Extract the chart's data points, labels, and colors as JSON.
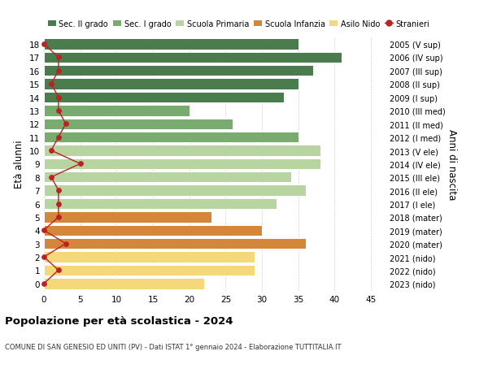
{
  "ages": [
    18,
    17,
    16,
    15,
    14,
    13,
    12,
    11,
    10,
    9,
    8,
    7,
    6,
    5,
    4,
    3,
    2,
    1,
    0
  ],
  "years_labels": [
    "2005 (V sup)",
    "2006 (IV sup)",
    "2007 (III sup)",
    "2008 (II sup)",
    "2009 (I sup)",
    "2010 (III med)",
    "2011 (II med)",
    "2012 (I med)",
    "2013 (V ele)",
    "2014 (IV ele)",
    "2015 (III ele)",
    "2016 (II ele)",
    "2017 (I ele)",
    "2018 (mater)",
    "2019 (mater)",
    "2020 (mater)",
    "2021 (nido)",
    "2022 (nido)",
    "2023 (nido)"
  ],
  "bar_values": [
    35,
    41,
    37,
    35,
    33,
    20,
    26,
    35,
    38,
    38,
    34,
    36,
    32,
    23,
    30,
    36,
    29,
    29,
    22
  ],
  "stranieri_values": [
    0,
    2,
    2,
    1,
    2,
    2,
    3,
    2,
    1,
    5,
    1,
    2,
    2,
    2,
    0,
    3,
    0,
    2,
    0
  ],
  "bar_colors": [
    "#4a7c4e",
    "#4a7c4e",
    "#4a7c4e",
    "#4a7c4e",
    "#4a7c4e",
    "#7aab6e",
    "#7aab6e",
    "#7aab6e",
    "#b8d4a0",
    "#b8d4a0",
    "#b8d4a0",
    "#b8d4a0",
    "#b8d4a0",
    "#d4873a",
    "#d4873a",
    "#d4873a",
    "#f5d87a",
    "#f5d87a",
    "#f5d87a"
  ],
  "legend_colors": [
    "#4a7c4e",
    "#7aab6e",
    "#b8d4a0",
    "#d4873a",
    "#f5d87a",
    "#cc2222"
  ],
  "legend_labels": [
    "Sec. II grado",
    "Sec. I grado",
    "Scuola Primaria",
    "Scuola Infanzia",
    "Asilo Nido",
    "Stranieri"
  ],
  "ylabel_left": "Età alunni",
  "ylabel_right": "Anni di nascita",
  "title": "Popolazione per età scolastica - 2024",
  "subtitle": "COMUNE DI SAN GENESIO ED UNITI (PV) - Dati ISTAT 1° gennaio 2024 - Elaborazione TUTTITALIA.IT",
  "xlim": [
    0,
    47
  ],
  "background_color": "#ffffff",
  "grid_color": "#cccccc"
}
